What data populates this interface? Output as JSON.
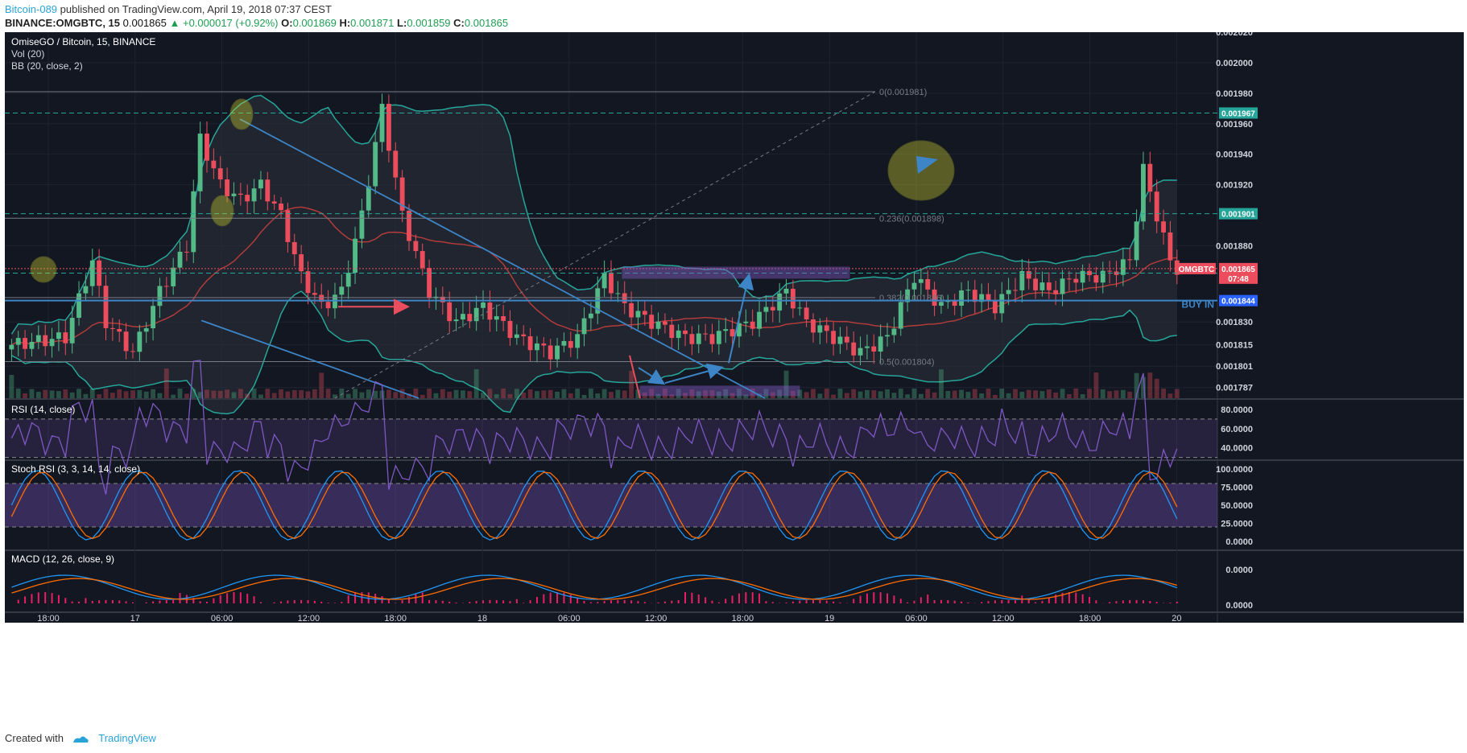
{
  "header": {
    "user": "Bitcoin-089",
    "published_text": "published on TradingView.com, April 19, 2018 07:37 CEST",
    "symbol_line": "BINANCE:OMGBTC, 15",
    "last": "0.001865",
    "change": "▲ +0.000017 (+0.92%)",
    "o_label": "O:",
    "o_value": "0.001869",
    "h_label": "H:",
    "h_value": "0.001871",
    "l_label": "L:",
    "l_value": "0.001859",
    "c_label": "C:",
    "c_value": "0.001865"
  },
  "footer": {
    "created_with": "Created with",
    "brand": "TradingView"
  },
  "colors": {
    "background": "#131722",
    "up": "#53b987",
    "down": "#eb4d5c",
    "bb": "#26a69a",
    "basis": "#b23b3b",
    "trendline": "#3d85c6",
    "fib": "#787b86",
    "dashed": "#26a69a",
    "purple": "#7e57c2",
    "macd": "#2196f3",
    "signal": "#ff6d00"
  },
  "chart_data": {
    "type": "candlestick",
    "title": "OmiseGO / Bitcoin, 15, BINANCE",
    "indicators": [
      "Vol (20)",
      "BB (20, close, 2)"
    ],
    "x_ticks": [
      "18:00",
      "17",
      "06:00",
      "12:00",
      "18:00",
      "18",
      "06:00",
      "12:00",
      "18:00",
      "19",
      "06:00",
      "12:00",
      "18:00",
      "20"
    ],
    "y_ticks": [
      "0.002020",
      "0.002000",
      "0.001980",
      "0.001960",
      "0.001940",
      "0.001920",
      "0.001880",
      "0.001830",
      "0.001815",
      "0.001801",
      "0.001787"
    ],
    "ylim": [
      0.00178,
      0.00202
    ],
    "price_line": {
      "label": "OMGBTC",
      "value": "0.001865",
      "countdown": "07:48"
    },
    "levels": [
      {
        "value": "0.001967",
        "style": "dashed"
      },
      {
        "value": "0.001901",
        "style": "dashed"
      },
      {
        "value": "0.001862",
        "style": "dashed"
      },
      {
        "value": "0.001844",
        "style": "buy-in",
        "label": "BUY IN"
      }
    ],
    "fib": [
      {
        "label": "0(0.001981)",
        "value": 0.001981
      },
      {
        "label": "0.236(0.001898)",
        "value": 0.001898
      },
      {
        "label": "0.382(0.001846)",
        "value": 0.001846
      },
      {
        "label": "0.5(0.001804)",
        "value": 0.001804
      }
    ],
    "price_anchors": [
      [
        0,
        0.001815
      ],
      [
        8,
        0.00182
      ],
      [
        12,
        0.00187
      ],
      [
        14,
        0.00183
      ],
      [
        18,
        0.00181
      ],
      [
        22,
        0.00185
      ],
      [
        26,
        0.00188
      ],
      [
        28,
        0.00195
      ],
      [
        31,
        0.00192
      ],
      [
        34,
        0.00191
      ],
      [
        37,
        0.00192
      ],
      [
        40,
        0.0019
      ],
      [
        43,
        0.00186
      ],
      [
        46,
        0.00184
      ],
      [
        49,
        0.00185
      ],
      [
        52,
        0.0019
      ],
      [
        55,
        0.00197
      ],
      [
        58,
        0.0019
      ],
      [
        62,
        0.00185
      ],
      [
        66,
        0.00183
      ],
      [
        70,
        0.00184
      ],
      [
        75,
        0.00182
      ],
      [
        80,
        0.00181
      ],
      [
        84,
        0.00182
      ],
      [
        88,
        0.00186
      ],
      [
        91,
        0.00184
      ],
      [
        95,
        0.00183
      ],
      [
        100,
        0.00182
      ],
      [
        104,
        0.00182
      ],
      [
        110,
        0.00183
      ],
      [
        115,
        0.00185
      ],
      [
        118,
        0.00183
      ],
      [
        122,
        0.00182
      ],
      [
        126,
        0.00181
      ],
      [
        130,
        0.00182
      ],
      [
        134,
        0.00186
      ],
      [
        138,
        0.00184
      ],
      [
        142,
        0.00185
      ],
      [
        146,
        0.00184
      ],
      [
        150,
        0.00186
      ],
      [
        154,
        0.00185
      ],
      [
        158,
        0.00186
      ],
      [
        162,
        0.00186
      ],
      [
        166,
        0.00187
      ],
      [
        168,
        0.00193
      ],
      [
        170,
        0.0019
      ],
      [
        172,
        0.00187
      ],
      [
        173,
        0.001865
      ]
    ],
    "rsi": {
      "label": "RSI (14, close)",
      "ticks": [
        "80.0000",
        "60.0000",
        "40.0000"
      ],
      "ylim": [
        28,
        90
      ],
      "bands": [
        70,
        30
      ]
    },
    "stoch_rsi": {
      "label": "Stoch RSI (3, 3, 14, 14, close)",
      "ticks": [
        "100.0000",
        "75.0000",
        "50.0000",
        "25.0000",
        "0.0000"
      ],
      "ylim": [
        0,
        100
      ],
      "bands": [
        80,
        20
      ]
    },
    "macd": {
      "label": "MACD (12, 26, close, 9)",
      "ticks": [
        "0.0000",
        "0.0000"
      ]
    }
  }
}
